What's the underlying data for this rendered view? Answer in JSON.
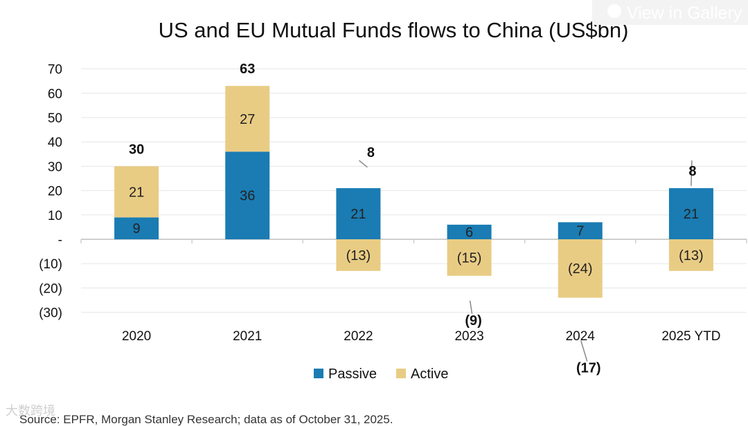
{
  "chart_data": {
    "type": "bar",
    "stacked": true,
    "title": "US and EU Mutual Funds flows to China (US$bn)",
    "xlabel": "",
    "ylabel": "",
    "ylim": [
      -30,
      70
    ],
    "yticks": [
      70,
      60,
      50,
      40,
      30,
      20,
      10,
      0,
      -10,
      -20,
      -30
    ],
    "ytick_labels": [
      "70",
      "60",
      "50",
      "40",
      "30",
      "20",
      "10",
      "-",
      "(10)",
      "(20)",
      "(30)"
    ],
    "categories": [
      "2020",
      "2021",
      "2022",
      "2023",
      "2024",
      "2025 YTD"
    ],
    "series": [
      {
        "name": "Passive",
        "color": "#1a7cb3",
        "values": [
          9,
          36,
          21,
          6,
          7,
          21
        ],
        "labels": [
          "9",
          "36",
          "21",
          "6",
          "7",
          "21"
        ]
      },
      {
        "name": "Active",
        "color": "#e9cc84",
        "values": [
          21,
          27,
          -13,
          -15,
          -24,
          -13
        ],
        "labels": [
          "21",
          "27",
          "(13)",
          "(15)",
          "(24)",
          "(13)"
        ]
      }
    ],
    "totals": [
      30,
      63,
      8,
      -9,
      -17,
      8
    ],
    "total_labels": [
      "30",
      "63",
      "8",
      "(9)",
      "(17)",
      "8"
    ],
    "legend": "bottom",
    "grid": true
  },
  "source": "Source: EPFR, Morgan Stanley Research; data as of October 31, 2025.",
  "overlay": {
    "gallery_button": "View in Gallery",
    "watermark": "大数跨境"
  }
}
